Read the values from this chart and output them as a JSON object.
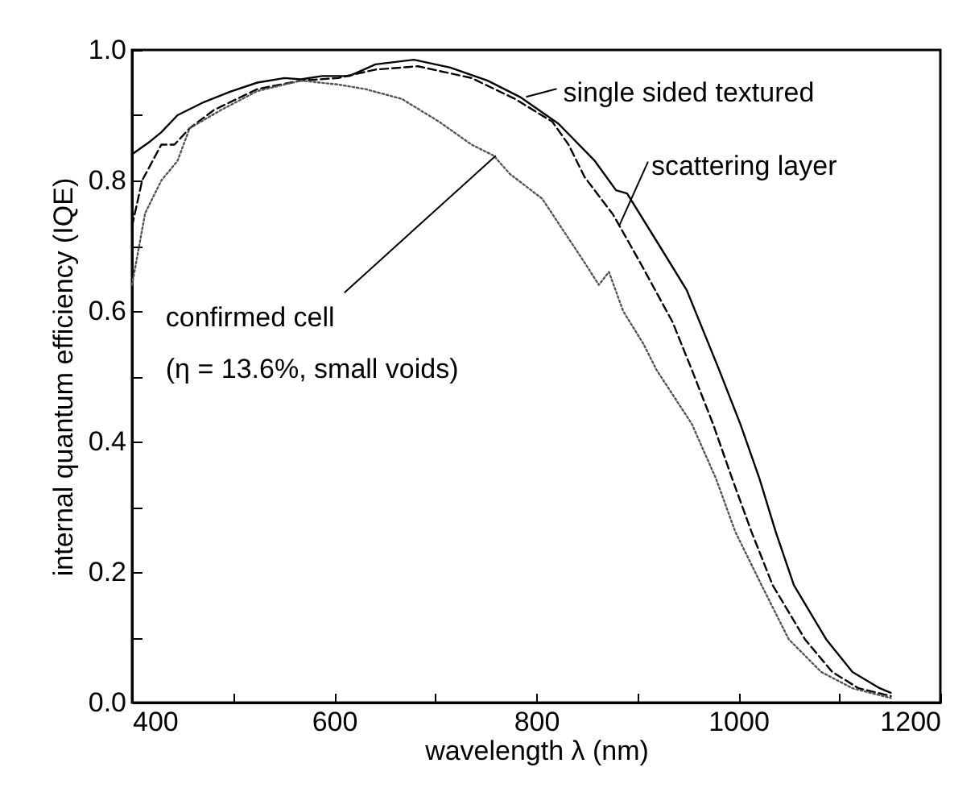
{
  "chart_data": {
    "type": "line",
    "xlabel": "wavelength λ (nm)",
    "ylabel": "internal quantum efficiency (IQE)",
    "xlim": [
      400,
      1200
    ],
    "ylim": [
      0,
      1
    ],
    "xticks": [
      400,
      {
        "value": 500,
        "label": null
      },
      600,
      {
        "value": 700,
        "label": null
      },
      800,
      {
        "value": 900,
        "label": null
      },
      1000,
      {
        "value": 1100,
        "label": null
      },
      1200
    ],
    "yticks": [
      {
        "value": 0,
        "label": "0.0"
      },
      {
        "value": 0.1,
        "label": null
      },
      {
        "value": 0.2,
        "label": "0.2"
      },
      {
        "value": 0.3,
        "label": null
      },
      {
        "value": 0.4,
        "label": "0.4"
      },
      {
        "value": 0.5,
        "label": null
      },
      {
        "value": 0.6,
        "label": "0.6"
      },
      {
        "value": 0.7,
        "label": null
      },
      {
        "value": 0.8,
        "label": "0.8"
      },
      {
        "value": 0.9,
        "label": null
      },
      {
        "value": 1,
        "label": "1.0"
      }
    ],
    "grid": false,
    "series": [
      {
        "color": "#000000",
        "line_style": "solid",
        "x": [
          400,
          418,
          429,
          445,
          471,
          497,
          524,
          551,
          567,
          588,
          615,
          641,
          679,
          715,
          752,
          784,
          822,
          858,
          879,
          890,
          922,
          949,
          981,
          1002,
          1021,
          1037,
          1055,
          1087,
          1113,
          1140,
          1151
        ],
        "values": [
          0.84,
          0.86,
          0.874,
          0.9,
          0.92,
          0.936,
          0.95,
          0.957,
          0.955,
          0.96,
          0.96,
          0.978,
          0.985,
          0.973,
          0.953,
          0.928,
          0.887,
          0.83,
          0.785,
          0.78,
          0.7,
          0.632,
          0.51,
          0.427,
          0.343,
          0.262,
          0.18,
          0.097,
          0.047,
          0.022,
          0.015
        ]
      },
      {
        "color": "#000000",
        "line_style": "dashed",
        "x": [
          400,
          410,
          429,
          442,
          457,
          481,
          524,
          567,
          604,
          641,
          683,
          736,
          779,
          816,
          832,
          848,
          876,
          903,
          935,
          954,
          975,
          994,
          1013,
          1034,
          1066,
          1093,
          1119,
          1151
        ],
        "values": [
          0.73,
          0.8,
          0.855,
          0.855,
          0.88,
          0.908,
          0.94,
          0.953,
          0.957,
          0.97,
          0.975,
          0.957,
          0.925,
          0.89,
          0.855,
          0.805,
          0.748,
          0.674,
          0.583,
          0.51,
          0.427,
          0.343,
          0.262,
          0.18,
          0.097,
          0.047,
          0.022,
          0.01
        ]
      },
      {
        "color": "#555555",
        "line_style": "dotted",
        "x": [
          400,
          413,
          429,
          445,
          457,
          488,
          524,
          567,
          604,
          631,
          667,
          704,
          736,
          758,
          774,
          806,
          827,
          848,
          862,
          872,
          886,
          906,
          919,
          954,
          978,
          997,
          1023,
          1050,
          1082,
          1113,
          1151
        ],
        "values": [
          0.64,
          0.75,
          0.8,
          0.83,
          0.88,
          0.908,
          0.937,
          0.953,
          0.947,
          0.94,
          0.925,
          0.89,
          0.855,
          0.838,
          0.81,
          0.772,
          0.723,
          0.674,
          0.64,
          0.66,
          0.6,
          0.55,
          0.51,
          0.427,
          0.343,
          0.262,
          0.18,
          0.097,
          0.047,
          0.022,
          0.007
        ]
      }
    ],
    "annotations": [
      {
        "text": "single sided textured",
        "x": 790,
        "y": 0.928
      },
      {
        "text": "scattering layer",
        "x": 882,
        "y": 0.73
      },
      {
        "text": "confirmed cell\n(η = 13.6%, small voids)",
        "x": 760,
        "y": 0.838
      }
    ]
  }
}
